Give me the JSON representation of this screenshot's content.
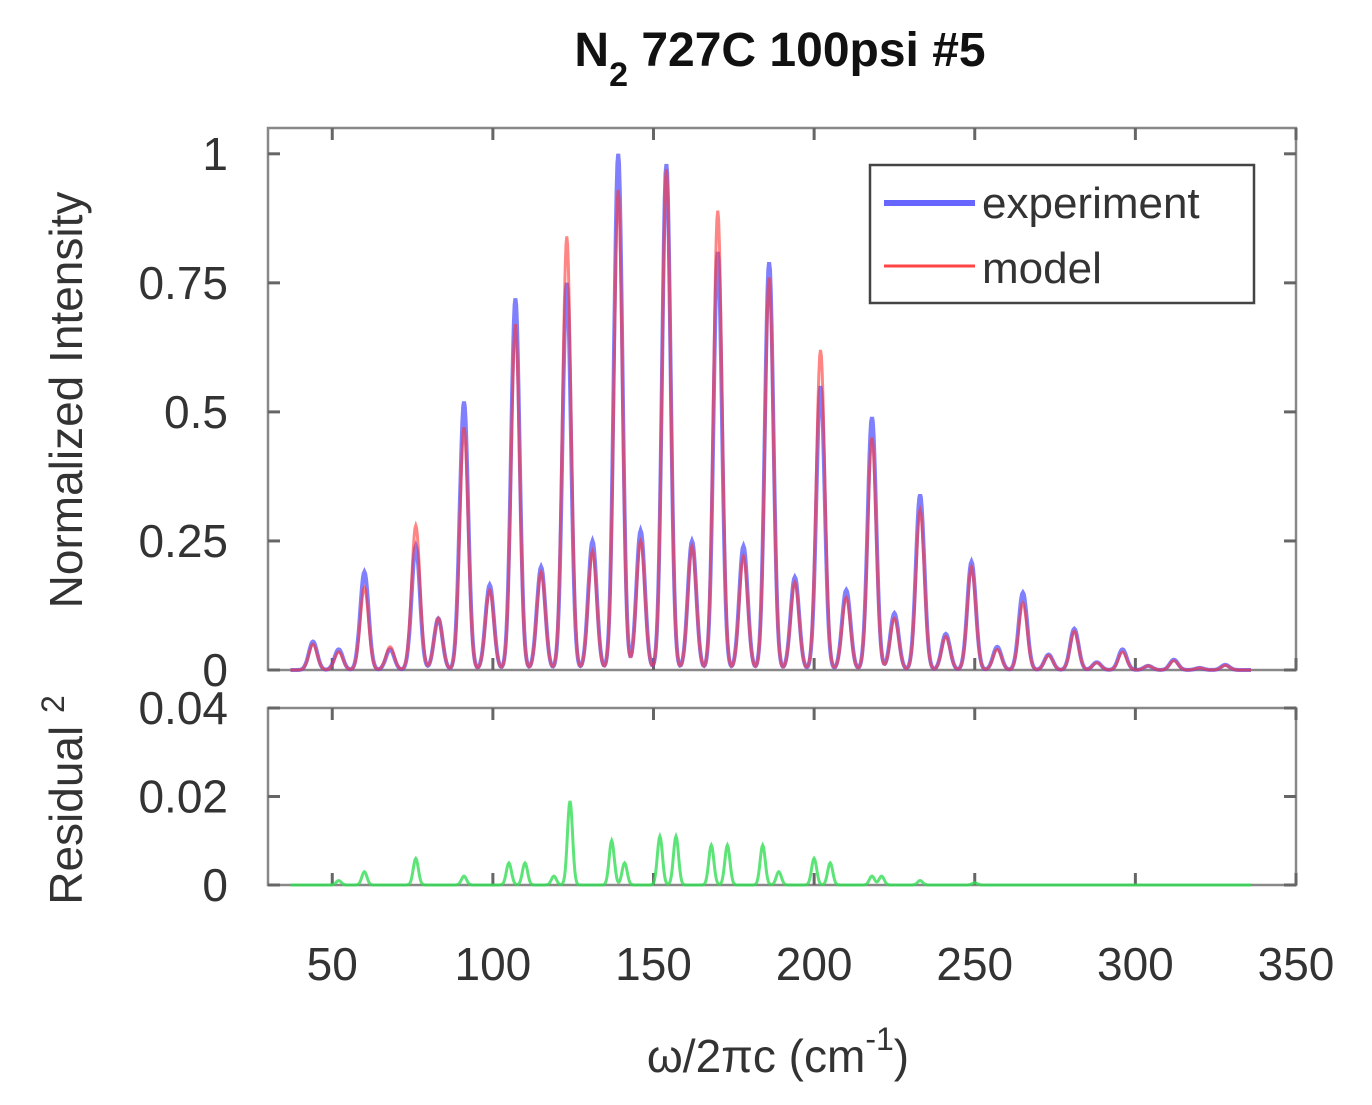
{
  "chart_data": [
    {
      "type": "line",
      "title": "N",
      "title_sub": "2",
      "title_rest": " 727C 100psi #5",
      "xlabel": "",
      "ylabel": "Normalized Intensity",
      "xlim": [
        30,
        350
      ],
      "ylim": [
        0,
        1.05
      ],
      "yticks": [
        0,
        0.25,
        0.5,
        0.75,
        1
      ],
      "ytick_labels": [
        "0",
        "0.25",
        "0.5",
        "0.75",
        "1"
      ],
      "grid": false,
      "legend_position": "top-right",
      "peak_positions": [
        44,
        52,
        60,
        68,
        76,
        83,
        91,
        99,
        107,
        115,
        123,
        131,
        139,
        146,
        154,
        162,
        170,
        178,
        186,
        194,
        202,
        210,
        218,
        225,
        233,
        241,
        249,
        257,
        265,
        273,
        281,
        288,
        296,
        304,
        312,
        320,
        328
      ],
      "series": [
        {
          "name": "experiment",
          "color": "#5555ff",
          "values": [
            0.055,
            0.04,
            0.19,
            0.04,
            0.24,
            0.1,
            0.52,
            0.165,
            0.72,
            0.2,
            0.75,
            0.25,
            1.0,
            0.27,
            0.98,
            0.25,
            0.81,
            0.24,
            0.79,
            0.18,
            0.55,
            0.155,
            0.49,
            0.11,
            0.34,
            0.07,
            0.21,
            0.045,
            0.15,
            0.03,
            0.08,
            0.015,
            0.04,
            0.008,
            0.02,
            0.004,
            0.01
          ]
        },
        {
          "name": "model",
          "color": "#ff3333",
          "values": [
            0.05,
            0.035,
            0.16,
            0.045,
            0.28,
            0.1,
            0.47,
            0.155,
            0.67,
            0.19,
            0.84,
            0.23,
            0.93,
            0.25,
            0.97,
            0.24,
            0.89,
            0.22,
            0.76,
            0.17,
            0.62,
            0.14,
            0.45,
            0.1,
            0.31,
            0.065,
            0.2,
            0.04,
            0.13,
            0.028,
            0.075,
            0.014,
            0.035,
            0.008,
            0.018,
            0.004,
            0.009
          ]
        }
      ]
    },
    {
      "type": "line",
      "xlabel": "ω/2πc (cm",
      "xlabel_sup": "-1",
      "xlabel_end": ")",
      "ylabel": "Residual ",
      "ylabel_sup": "2",
      "xlim": [
        30,
        350
      ],
      "ylim": [
        0,
        0.04
      ],
      "xticks": [
        50,
        100,
        150,
        200,
        250,
        300,
        350
      ],
      "xtick_labels": [
        "50",
        "100",
        "150",
        "200",
        "250",
        "300",
        "350"
      ],
      "yticks": [
        0,
        0.02,
        0.04
      ],
      "ytick_labels": [
        "0",
        "0.02",
        "0.04"
      ],
      "series": [
        {
          "color": "#33dd55",
          "x": [
            52,
            60,
            76,
            91,
            105,
            110,
            119,
            124,
            137,
            141,
            152,
            157,
            168,
            173,
            184,
            189,
            200,
            205,
            218,
            221,
            233,
            250
          ],
          "values": [
            0.001,
            0.003,
            0.006,
            0.002,
            0.005,
            0.005,
            0.002,
            0.019,
            0.01,
            0.005,
            0.011,
            0.011,
            0.009,
            0.009,
            0.009,
            0.003,
            0.006,
            0.005,
            0.002,
            0.002,
            0.001,
            0.0005
          ]
        }
      ]
    }
  ]
}
